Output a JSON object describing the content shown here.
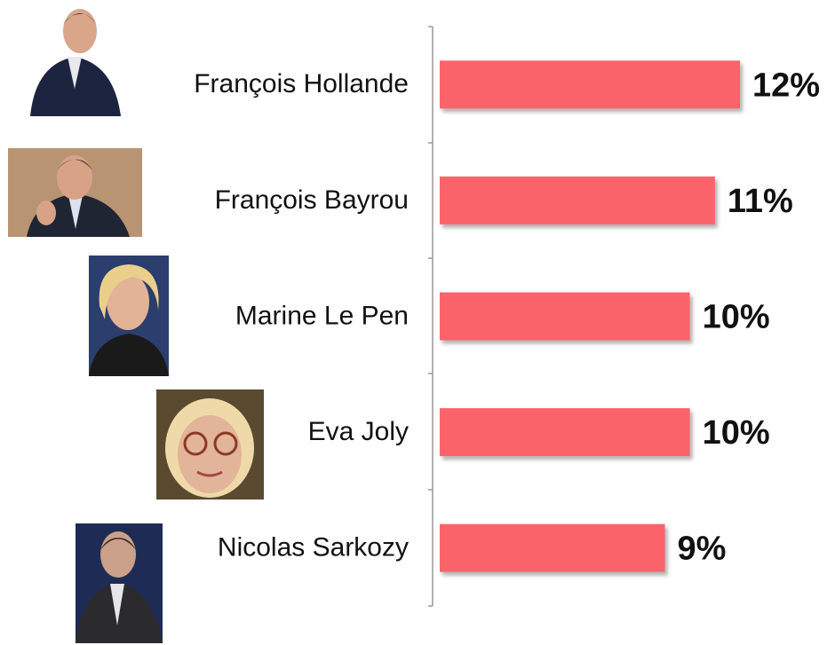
{
  "chart_data": {
    "type": "bar",
    "orientation": "horizontal",
    "categories": [
      "François Hollande",
      "François Bayrou",
      "Marine Le Pen",
      "Eva Joly",
      "Nicolas Sarkozy"
    ],
    "values": [
      12,
      11,
      10,
      10,
      9
    ],
    "value_labels": [
      "12%",
      "11%",
      "10%",
      "10%",
      "9%"
    ],
    "color": "#fb636b",
    "xlim": [
      0,
      12
    ]
  }
}
